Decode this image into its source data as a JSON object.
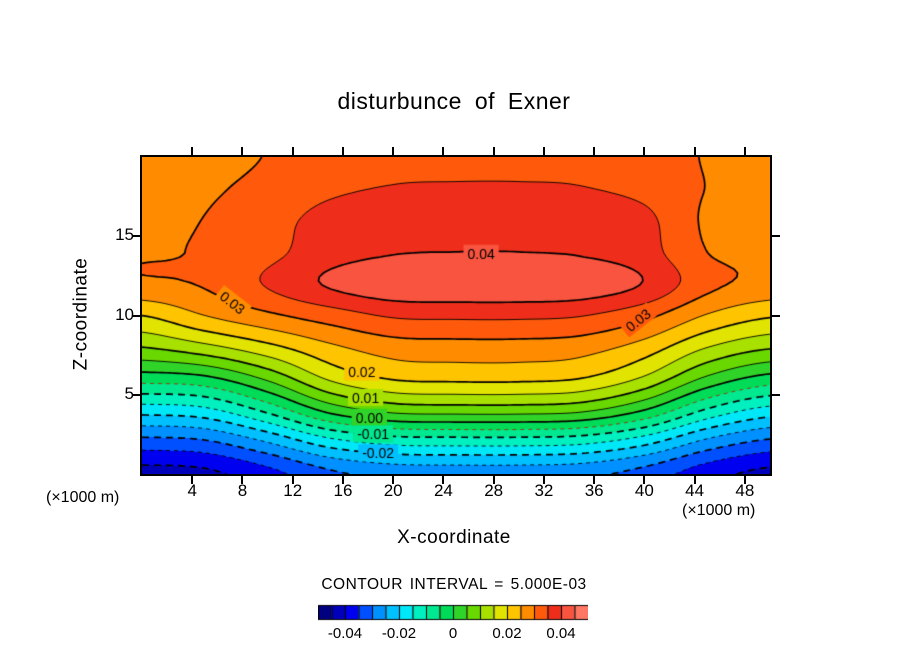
{
  "title": "disturbunce of Exner",
  "contour_note": "CONTOUR INTERVAL = 5.000E-03",
  "axes": {
    "x": {
      "label": "X-coordinate",
      "unit": "(×1000 m)",
      "ticks": [
        4,
        8,
        12,
        16,
        20,
        24,
        28,
        32,
        36,
        40,
        44,
        48
      ],
      "range": [
        0,
        50
      ]
    },
    "z": {
      "label": "Z-coordinate",
      "unit": "(×1000 m)",
      "ticks": [
        5,
        10,
        15
      ],
      "range": [
        0,
        20
      ]
    }
  },
  "colorbar": {
    "labels": [
      "-0.04",
      "-0.02",
      "0",
      "0.02",
      "0.04"
    ],
    "values": [
      -0.04,
      -0.02,
      0,
      0.02,
      0.04
    ],
    "fractions": [
      0.1,
      0.3,
      0.5,
      0.7,
      0.9
    ]
  },
  "chart_data": {
    "type": "heatmap",
    "variant": "filled-contour",
    "title": "disturbunce of Exner",
    "xlabel": "X-coordinate",
    "ylabel": "Z-coordinate",
    "x_units": "x1000 m",
    "z_units": "x1000 m",
    "contour_interval": 0.005,
    "x_range": [
      0,
      50
    ],
    "z_range": [
      0,
      20
    ],
    "x": [
      0,
      5,
      10,
      15,
      20,
      25,
      30,
      35,
      40,
      45,
      50
    ],
    "z": [
      0,
      2,
      4,
      6,
      8,
      10,
      12,
      14,
      16,
      18,
      20
    ],
    "values": [
      [
        -0.042,
        -0.0412,
        -0.0368,
        -0.0311,
        -0.0284,
        -0.028,
        -0.028,
        -0.0287,
        -0.0321,
        -0.038,
        -0.0415
      ],
      [
        -0.032,
        -0.0309,
        -0.025,
        -0.0172,
        -0.0135,
        -0.013,
        -0.013,
        -0.0139,
        -0.0185,
        -0.0266,
        -0.0313
      ],
      [
        -0.018,
        -0.0165,
        -0.0088,
        0.0015,
        0.0063,
        0.007,
        0.007,
        0.0058,
        -0.0003,
        -0.0109,
        -0.0171
      ],
      [
        -0.003,
        -0.0015,
        0.0058,
        0.0157,
        0.0203,
        0.021,
        0.021,
        0.0198,
        0.014,
        0.0038,
        -0.0022
      ],
      [
        0.01,
        0.0135,
        0.0185,
        0.024,
        0.0275,
        0.028,
        0.028,
        0.0271,
        0.0228,
        0.0151,
        0.0106
      ],
      [
        0.02,
        0.025,
        0.029,
        0.0325,
        0.0356,
        0.036,
        0.036,
        0.0352,
        0.0314,
        0.0246,
        0.0206
      ],
      [
        0.0292,
        0.0305,
        0.0355,
        0.0407,
        0.0436,
        0.044,
        0.044,
        0.0433,
        0.0397,
        0.0315,
        0.0285
      ],
      [
        0.0298,
        0.0304,
        0.0336,
        0.0378,
        0.0397,
        0.04,
        0.04,
        0.0395,
        0.037,
        0.03,
        0.0293
      ],
      [
        0.0295,
        0.0301,
        0.033,
        0.0369,
        0.0387,
        0.039,
        0.039,
        0.0385,
        0.0363,
        0.0293,
        0.0288
      ],
      [
        0.029,
        0.0294,
        0.0314,
        0.0341,
        0.0353,
        0.0355,
        0.0355,
        0.0352,
        0.0336,
        0.0299,
        0.0292
      ],
      [
        0.028,
        0.0284,
        0.0302,
        0.0327,
        0.0338,
        0.034,
        0.034,
        0.0337,
        0.0323,
        0.0297,
        0.0282
      ]
    ],
    "levels": [
      -0.04,
      -0.035,
      -0.03,
      -0.025,
      -0.02,
      -0.015,
      -0.01,
      -0.005,
      0.0,
      0.005,
      0.01,
      0.015,
      0.02,
      0.025,
      0.03,
      0.035,
      0.04
    ],
    "level_colors": {
      "-0.005": "#993300"
    },
    "palette": {
      "min": -0.05,
      "max": 0.05,
      "step": 0.005,
      "colors": [
        "#000080",
        "#0000bb",
        "#0000f0",
        "#0050ff",
        "#0090ff",
        "#00c0ff",
        "#00e8f8",
        "#00f0c0",
        "#00e890",
        "#00dc58",
        "#30d428",
        "#68d800",
        "#a8e000",
        "#e0e400",
        "#ffc400",
        "#ff8c00",
        "#ff5a0c",
        "#ee2e1a",
        "#f85440",
        "#ff7864"
      ]
    },
    "contour_labels": [
      {
        "text": "0.04",
        "x": 27.0,
        "z": 13.9,
        "angle": 0
      },
      {
        "text": "0.03",
        "x": 7.2,
        "z": 10.8,
        "angle": 38
      },
      {
        "text": "0.03",
        "x": 39.5,
        "z": 9.7,
        "angle": -38
      },
      {
        "text": "0.02",
        "x": 17.5,
        "z": 6.4,
        "angle": 0
      },
      {
        "text": "0.01",
        "x": 17.8,
        "z": 4.8,
        "angle": 0
      },
      {
        "text": "0.00",
        "x": 18.1,
        "z": 3.55,
        "angle": 0
      },
      {
        "text": "-0.01",
        "x": 18.4,
        "z": 2.5,
        "angle": 0
      },
      {
        "text": "-0.02",
        "x": 18.8,
        "z": 1.3,
        "angle": 0
      }
    ]
  }
}
